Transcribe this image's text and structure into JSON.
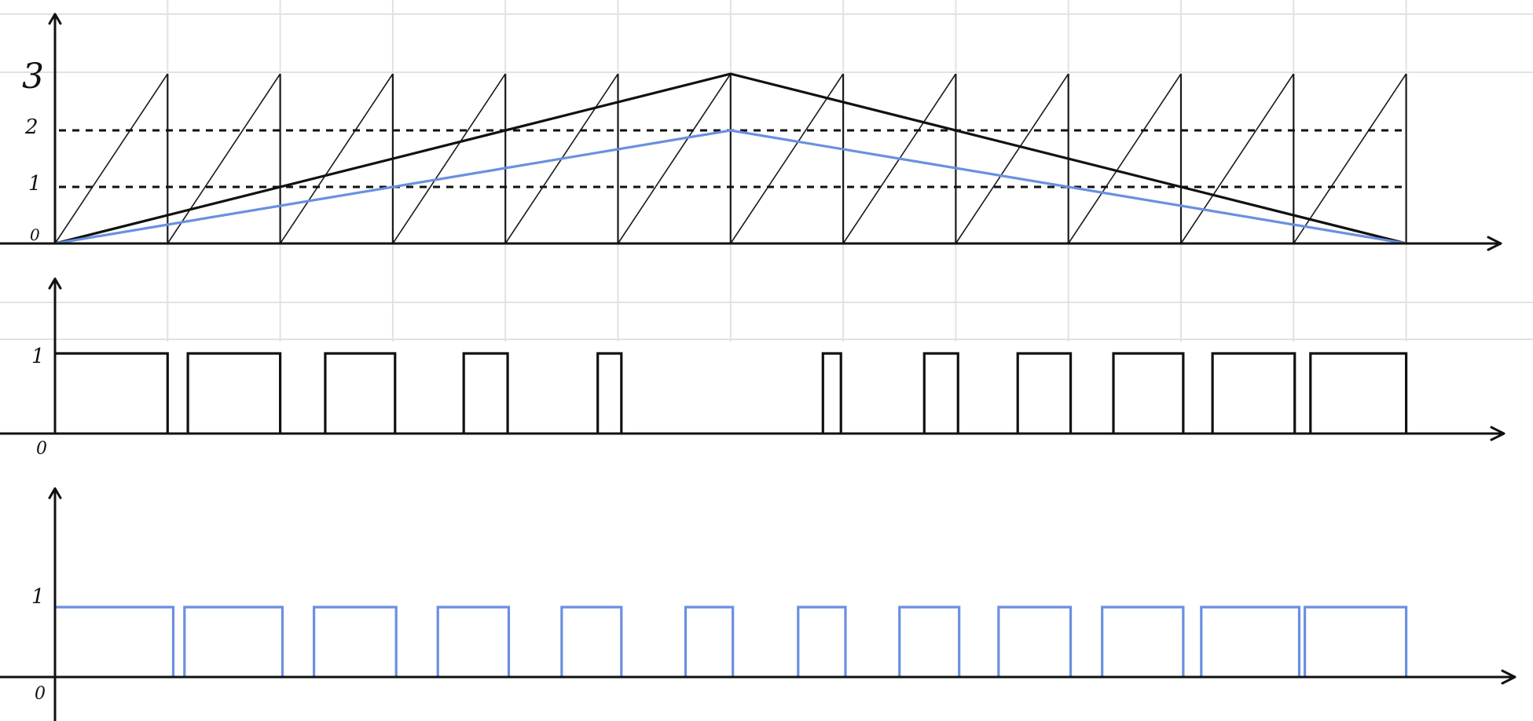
{
  "colors": {
    "black_signal": "#111111",
    "blue_signal": "#6b8fe0",
    "grid": "#e2e2e2",
    "background": "#ffffff"
  },
  "top_plot": {
    "y_tick_labels": [
      "3",
      "2",
      "1",
      "0"
    ],
    "carrier": {
      "type": "sawtooth",
      "periods": 12,
      "min": 0,
      "max": 3
    },
    "thresholds": [
      2,
      1
    ],
    "black_reference": {
      "points": [
        [
          0,
          0
        ],
        [
          6,
          3
        ],
        [
          12,
          0
        ]
      ]
    },
    "blue_reference": {
      "points": [
        [
          0,
          0
        ],
        [
          6,
          2
        ],
        [
          12,
          0
        ]
      ]
    }
  },
  "middle_plot": {
    "y_tick_labels": [
      "1",
      "0"
    ],
    "signal": "black",
    "high_intervals": [
      [
        0.0,
        1.0
      ],
      [
        1.18,
        2.0
      ],
      [
        2.4,
        3.02
      ],
      [
        3.63,
        4.02
      ],
      [
        4.82,
        5.03
      ],
      [
        6.82,
        6.98
      ],
      [
        7.72,
        8.02
      ],
      [
        8.55,
        9.02
      ],
      [
        9.4,
        10.02
      ],
      [
        10.28,
        11.01
      ],
      [
        11.15,
        12.0
      ]
    ]
  },
  "bottom_plot": {
    "y_tick_labels": [
      "1",
      "0"
    ],
    "signal": "blue",
    "high_intervals": [
      [
        0.0,
        1.05
      ],
      [
        1.15,
        2.02
      ],
      [
        2.3,
        3.03
      ],
      [
        3.4,
        4.03
      ],
      [
        4.5,
        5.03
      ],
      [
        5.6,
        6.02
      ],
      [
        6.6,
        7.02
      ],
      [
        7.5,
        8.03
      ],
      [
        8.38,
        9.02
      ],
      [
        9.3,
        10.02
      ],
      [
        10.18,
        11.05
      ],
      [
        11.1,
        12.0
      ]
    ]
  }
}
